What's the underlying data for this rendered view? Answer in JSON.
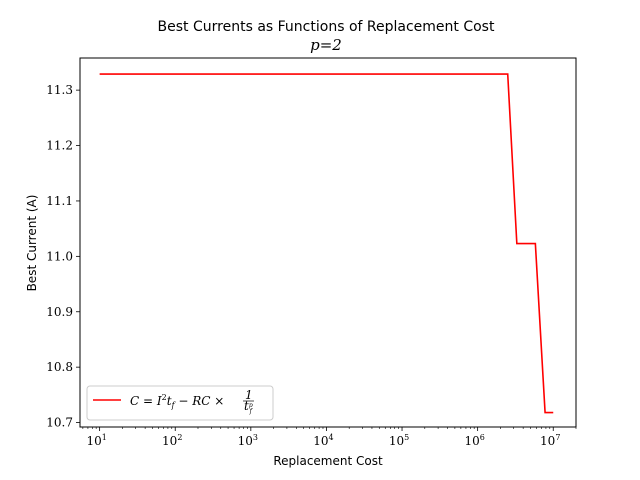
{
  "chart_data": {
    "type": "line",
    "title": "Best Currents as Functions of Replacement Cost",
    "subtitle": "p=2",
    "xlabel": "Replacement Cost",
    "ylabel": "Best Current (A)",
    "xscale": "log",
    "xlim": [
      5.5,
      20000000
    ],
    "ylim": [
      10.692,
      11.358
    ],
    "x_ticks": [
      {
        "value": 10,
        "label": "10^1",
        "base": "10",
        "exp": "1"
      },
      {
        "value": 100,
        "label": "10^2",
        "base": "10",
        "exp": "2"
      },
      {
        "value": 1000,
        "label": "10^3",
        "base": "10",
        "exp": "3"
      },
      {
        "value": 10000,
        "label": "10^4",
        "base": "10",
        "exp": "4"
      },
      {
        "value": 100000,
        "label": "10^5",
        "base": "10",
        "exp": "5"
      },
      {
        "value": 1000000,
        "label": "10^6",
        "base": "10",
        "exp": "6"
      },
      {
        "value": 10000000,
        "label": "10^7",
        "base": "10",
        "exp": "7"
      }
    ],
    "y_ticks": [
      {
        "value": 10.7,
        "label": "10.7"
      },
      {
        "value": 10.8,
        "label": "10.8"
      },
      {
        "value": 10.9,
        "label": "10.9"
      },
      {
        "value": 11.0,
        "label": "11.0"
      },
      {
        "value": 11.1,
        "label": "11.1"
      },
      {
        "value": 11.2,
        "label": "11.2"
      },
      {
        "value": 11.3,
        "label": "11.3"
      }
    ],
    "series": [
      {
        "name": "C = I^2 t_f − RC × 1/t_f^p",
        "color": "#ff0000",
        "x": [
          10,
          2500000,
          3300000,
          5800000,
          7800000,
          10000000
        ],
        "y": [
          11.329,
          11.329,
          11.023,
          11.023,
          10.718,
          10.718
        ]
      }
    ],
    "legend": {
      "placement": "lower-left",
      "label_parts": {
        "lhs": "C",
        "eq": " = ",
        "i": "I",
        "sq": "2",
        "t": "t",
        "tsub": "f",
        "minus": " − RC × ",
        "num": "1",
        "den": "t",
        "dsub": "f",
        "dsup": "p"
      }
    },
    "grid": false
  }
}
